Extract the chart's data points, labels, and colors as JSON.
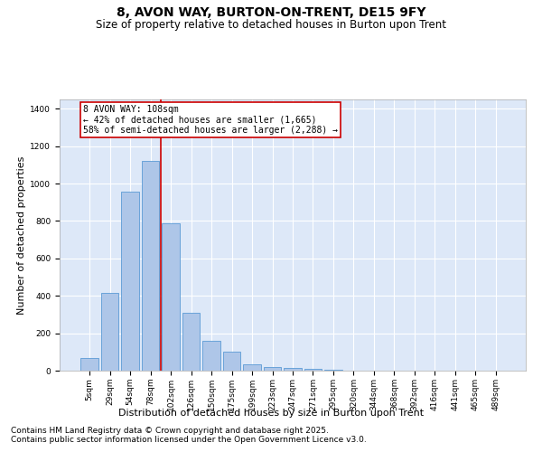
{
  "title": "8, AVON WAY, BURTON-ON-TRENT, DE15 9FY",
  "subtitle": "Size of property relative to detached houses in Burton upon Trent",
  "xlabel": "Distribution of detached houses by size in Burton upon Trent",
  "ylabel": "Number of detached properties",
  "categories": [
    "5sqm",
    "29sqm",
    "54sqm",
    "78sqm",
    "102sqm",
    "126sqm",
    "150sqm",
    "175sqm",
    "199sqm",
    "223sqm",
    "247sqm",
    "271sqm",
    "295sqm",
    "320sqm",
    "344sqm",
    "368sqm",
    "392sqm",
    "416sqm",
    "441sqm",
    "465sqm",
    "489sqm"
  ],
  "values": [
    70,
    415,
    955,
    1120,
    790,
    310,
    160,
    100,
    35,
    20,
    15,
    10,
    5,
    2,
    2,
    1,
    1,
    0,
    0,
    0,
    0
  ],
  "bar_color": "#aec6e8",
  "bar_edge_color": "#5b9bd5",
  "background_color": "#dde8f8",
  "grid_color": "#ffffff",
  "vline_color": "#cc0000",
  "annotation_line1": "8 AVON WAY: 108sqm",
  "annotation_line2": "← 42% of detached houses are smaller (1,665)",
  "annotation_line3": "58% of semi-detached houses are larger (2,288) →",
  "annotation_box_edge": "#cc0000",
  "ylim_max": 1450,
  "yticks": [
    0,
    200,
    400,
    600,
    800,
    1000,
    1200,
    1400
  ],
  "vline_index": 4,
  "footer1": "Contains HM Land Registry data © Crown copyright and database right 2025.",
  "footer2": "Contains public sector information licensed under the Open Government Licence v3.0.",
  "title_fontsize": 10,
  "subtitle_fontsize": 8.5,
  "xlabel_fontsize": 8,
  "ylabel_fontsize": 8,
  "tick_fontsize": 6.5,
  "annotation_fontsize": 7,
  "footer_fontsize": 6.5
}
